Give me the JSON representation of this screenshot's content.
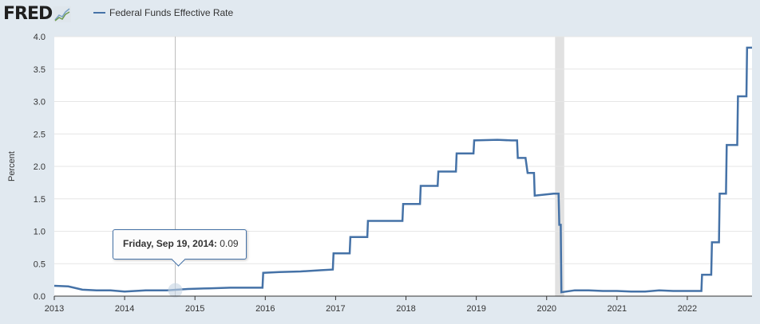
{
  "header": {
    "logo_text": "FRED",
    "logo_icon": "fred-chart-icon",
    "legend_label": "Federal Funds Effective Rate"
  },
  "tooltip": {
    "date_text": "Friday, Sep 19, 2014:",
    "value_text": "0.09",
    "x": 2014.72,
    "y": 0.09
  },
  "chart_data": {
    "type": "line",
    "title": "",
    "xlabel": "",
    "ylabel": "Percent",
    "xlim": [
      2013.0,
      2022.92
    ],
    "ylim": [
      0,
      4.0
    ],
    "x_ticks": [
      2013,
      2014,
      2015,
      2016,
      2017,
      2018,
      2019,
      2020,
      2021,
      2022
    ],
    "y_ticks": [
      0.0,
      0.5,
      1.0,
      1.5,
      2.0,
      2.5,
      3.0,
      3.5,
      4.0
    ],
    "y_tick_labels": [
      "0.0",
      "0.5",
      "1.0",
      "1.5",
      "2.0",
      "2.5",
      "3.0",
      "3.5",
      "4.0"
    ],
    "grid": "horizontal",
    "recession_shading": [
      [
        2020.12,
        2020.25
      ]
    ],
    "series": [
      {
        "name": "Federal Funds Effective Rate",
        "color": "#4572a7",
        "x": [
          2013.0,
          2013.2,
          2013.4,
          2013.6,
          2013.8,
          2014.0,
          2014.3,
          2014.6,
          2014.9,
          2015.2,
          2015.5,
          2015.8,
          2015.96,
          2015.97,
          2016.2,
          2016.5,
          2016.8,
          2016.96,
          2016.97,
          2017.2,
          2017.21,
          2017.45,
          2017.46,
          2017.95,
          2017.96,
          2018.2,
          2018.21,
          2018.45,
          2018.46,
          2018.71,
          2018.72,
          2018.96,
          2018.97,
          2019.3,
          2019.5,
          2019.58,
          2019.59,
          2019.7,
          2019.73,
          2019.82,
          2019.83,
          2020.1,
          2020.17,
          2020.18,
          2020.2,
          2020.21,
          2020.4,
          2020.6,
          2020.8,
          2021.0,
          2021.2,
          2021.4,
          2021.6,
          2021.8,
          2022.0,
          2022.2,
          2022.21,
          2022.34,
          2022.35,
          2022.45,
          2022.46,
          2022.55,
          2022.56,
          2022.71,
          2022.72,
          2022.84,
          2022.85,
          2022.92
        ],
        "values": [
          0.16,
          0.15,
          0.1,
          0.09,
          0.09,
          0.07,
          0.09,
          0.09,
          0.11,
          0.12,
          0.13,
          0.13,
          0.13,
          0.36,
          0.37,
          0.38,
          0.4,
          0.41,
          0.66,
          0.66,
          0.91,
          0.91,
          1.16,
          1.16,
          1.42,
          1.42,
          1.7,
          1.7,
          1.92,
          1.92,
          2.2,
          2.2,
          2.4,
          2.41,
          2.4,
          2.4,
          2.13,
          2.13,
          1.9,
          1.9,
          1.55,
          1.58,
          1.58,
          1.1,
          1.1,
          0.06,
          0.09,
          0.09,
          0.08,
          0.08,
          0.07,
          0.07,
          0.09,
          0.08,
          0.08,
          0.08,
          0.33,
          0.33,
          0.83,
          0.83,
          1.58,
          1.58,
          2.33,
          2.33,
          3.08,
          3.08,
          3.83,
          3.83
        ]
      }
    ]
  }
}
